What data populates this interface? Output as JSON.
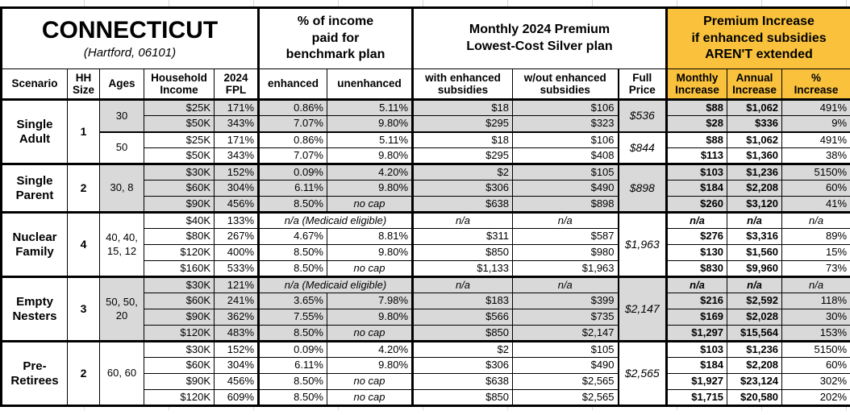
{
  "colors": {
    "accent_orange": "#FAC23C",
    "row_shade_gray": "#D9D9D9",
    "border": "#000000"
  },
  "chart_data": {
    "type": "table",
    "title": "CONNECTICUT",
    "subtitle": "(Hartford, 06101)",
    "column_groups": {
      "benchmark": "% of income\npaid for\nbenchmark plan",
      "premium": "Monthly 2024 Premium\nLowest-Cost Silver plan",
      "increase": "Premium Increase\nif enhanced subsidies\nAREN'T extended"
    },
    "columns": [
      "Scenario",
      "HH\nSize",
      "Ages",
      "Household\nIncome",
      "2024\nFPL",
      "enhanced",
      "unenhanced",
      "with enhanced\nsubsidies",
      "w/out enhanced\nsubsidies",
      "Full\nPrice",
      "Monthly\nIncrease",
      "Annual\nIncrease",
      "%\nIncrease"
    ],
    "groups": [
      {
        "scenario": "Single\nAdult",
        "hh_size": "1",
        "age_blocks": [
          {
            "ages": "30",
            "full_price": "$536",
            "shaded": true,
            "rows": [
              {
                "income": "$25K",
                "fpl": "171%",
                "enhanced": "0.86%",
                "unenhanced": "5.11%",
                "with_sub": "$18",
                "wo_sub": "$106",
                "monthly": "$88",
                "annual": "$1,062",
                "pct": "491%"
              },
              {
                "income": "$50K",
                "fpl": "343%",
                "enhanced": "7.07%",
                "unenhanced": "9.80%",
                "with_sub": "$295",
                "wo_sub": "$323",
                "monthly": "$28",
                "annual": "$336",
                "pct": "9%"
              }
            ]
          },
          {
            "ages": "50",
            "full_price": "$844",
            "shaded": false,
            "rows": [
              {
                "income": "$25K",
                "fpl": "171%",
                "enhanced": "0.86%",
                "unenhanced": "5.11%",
                "with_sub": "$18",
                "wo_sub": "$106",
                "monthly": "$88",
                "annual": "$1,062",
                "pct": "491%"
              },
              {
                "income": "$50K",
                "fpl": "343%",
                "enhanced": "7.07%",
                "unenhanced": "9.80%",
                "with_sub": "$295",
                "wo_sub": "$408",
                "monthly": "$113",
                "annual": "$1,360",
                "pct": "38%"
              }
            ]
          }
        ]
      },
      {
        "scenario": "Single\nParent",
        "hh_size": "2",
        "age_blocks": [
          {
            "ages": "30, 8",
            "full_price": "$898",
            "shaded": true,
            "rows": [
              {
                "income": "$30K",
                "fpl": "152%",
                "enhanced": "0.09%",
                "unenhanced": "4.20%",
                "with_sub": "$2",
                "wo_sub": "$105",
                "monthly": "$103",
                "annual": "$1,236",
                "pct": "5150%"
              },
              {
                "income": "$60K",
                "fpl": "304%",
                "enhanced": "6.11%",
                "unenhanced": "9.80%",
                "with_sub": "$306",
                "wo_sub": "$490",
                "monthly": "$184",
                "annual": "$2,208",
                "pct": "60%"
              },
              {
                "income": "$90K",
                "fpl": "456%",
                "enhanced": "8.50%",
                "unenhanced": "no cap",
                "with_sub": "$638",
                "wo_sub": "$898",
                "monthly": "$260",
                "annual": "$3,120",
                "pct": "41%"
              }
            ]
          }
        ]
      },
      {
        "scenario": "Nuclear\nFamily",
        "hh_size": "4",
        "age_blocks": [
          {
            "ages": "40, 40,\n15, 12",
            "full_price": "$1,963",
            "shaded": false,
            "rows": [
              {
                "income": "$40K",
                "fpl": "133%",
                "medicaid": "n/a (Medicaid eligible)",
                "with_sub": "n/a",
                "wo_sub": "n/a",
                "monthly": "n/a",
                "annual": "n/a",
                "pct": "n/a"
              },
              {
                "income": "$80K",
                "fpl": "267%",
                "enhanced": "4.67%",
                "unenhanced": "8.81%",
                "with_sub": "$311",
                "wo_sub": "$587",
                "monthly": "$276",
                "annual": "$3,316",
                "pct": "89%"
              },
              {
                "income": "$120K",
                "fpl": "400%",
                "enhanced": "8.50%",
                "unenhanced": "9.80%",
                "with_sub": "$850",
                "wo_sub": "$980",
                "monthly": "$130",
                "annual": "$1,560",
                "pct": "15%"
              },
              {
                "income": "$160K",
                "fpl": "533%",
                "enhanced": "8.50%",
                "unenhanced": "no cap",
                "with_sub": "$1,133",
                "wo_sub": "$1,963",
                "monthly": "$830",
                "annual": "$9,960",
                "pct": "73%"
              }
            ]
          }
        ]
      },
      {
        "scenario": "Empty\nNesters",
        "hh_size": "3",
        "age_blocks": [
          {
            "ages": "50, 50,\n20",
            "full_price": "$2,147",
            "shaded": true,
            "rows": [
              {
                "income": "$30K",
                "fpl": "121%",
                "medicaid": "n/a (Medicaid eligible)",
                "with_sub": "n/a",
                "wo_sub": "n/a",
                "monthly": "n/a",
                "annual": "n/a",
                "pct": "n/a"
              },
              {
                "income": "$60K",
                "fpl": "241%",
                "enhanced": "3.65%",
                "unenhanced": "7.98%",
                "with_sub": "$183",
                "wo_sub": "$399",
                "monthly": "$216",
                "annual": "$2,592",
                "pct": "118%"
              },
              {
                "income": "$90K",
                "fpl": "362%",
                "enhanced": "7.55%",
                "unenhanced": "9.80%",
                "with_sub": "$566",
                "wo_sub": "$735",
                "monthly": "$169",
                "annual": "$2,028",
                "pct": "30%"
              },
              {
                "income": "$120K",
                "fpl": "483%",
                "enhanced": "8.50%",
                "unenhanced": "no cap",
                "with_sub": "$850",
                "wo_sub": "$2,147",
                "monthly": "$1,297",
                "annual": "$15,564",
                "pct": "153%"
              }
            ]
          }
        ]
      },
      {
        "scenario": "Pre-\nRetirees",
        "hh_size": "2",
        "age_blocks": [
          {
            "ages": "60, 60",
            "full_price": "$2,565",
            "shaded": false,
            "rows": [
              {
                "income": "$30K",
                "fpl": "152%",
                "enhanced": "0.09%",
                "unenhanced": "4.20%",
                "with_sub": "$2",
                "wo_sub": "$105",
                "monthly": "$103",
                "annual": "$1,236",
                "pct": "5150%"
              },
              {
                "income": "$60K",
                "fpl": "304%",
                "enhanced": "6.11%",
                "unenhanced": "9.80%",
                "with_sub": "$306",
                "wo_sub": "$490",
                "monthly": "$184",
                "annual": "$2,208",
                "pct": "60%"
              },
              {
                "income": "$90K",
                "fpl": "456%",
                "enhanced": "8.50%",
                "unenhanced": "no cap",
                "with_sub": "$638",
                "wo_sub": "$2,565",
                "monthly": "$1,927",
                "annual": "$23,124",
                "pct": "302%"
              },
              {
                "income": "$120K",
                "fpl": "609%",
                "enhanced": "8.50%",
                "unenhanced": "no cap",
                "with_sub": "$850",
                "wo_sub": "$2,565",
                "monthly": "$1,715",
                "annual": "$20,580",
                "pct": "202%"
              }
            ]
          }
        ]
      }
    ]
  }
}
